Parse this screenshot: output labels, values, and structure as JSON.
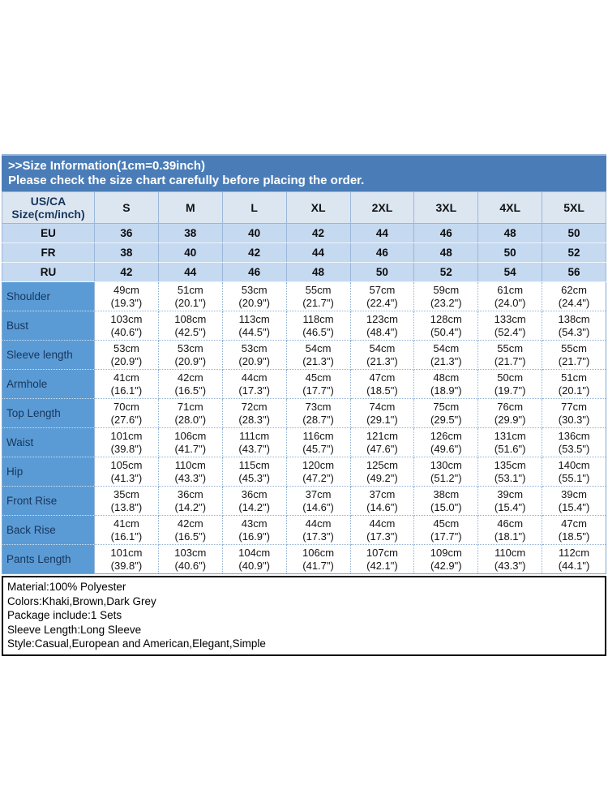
{
  "banner": {
    "title": ">>Size Information(1cm=0.39inch)",
    "subtitle": "Please check the size chart carefully before placing the order."
  },
  "table": {
    "corner": {
      "line1": "US/CA",
      "line2": "Size(cm/inch)"
    },
    "sizes": [
      "S",
      "M",
      "L",
      "XL",
      "2XL",
      "3XL",
      "4XL",
      "5XL"
    ],
    "region_rows": [
      {
        "label": "EU",
        "values": [
          "36",
          "38",
          "40",
          "42",
          "44",
          "46",
          "48",
          "50"
        ]
      },
      {
        "label": "FR",
        "values": [
          "38",
          "40",
          "42",
          "44",
          "46",
          "48",
          "50",
          "52"
        ]
      },
      {
        "label": "RU",
        "values": [
          "42",
          "44",
          "46",
          "48",
          "50",
          "52",
          "54",
          "56"
        ]
      }
    ],
    "measure_rows": [
      {
        "label": "Shoulder",
        "cm": [
          "49cm",
          "51cm",
          "53cm",
          "55cm",
          "57cm",
          "59cm",
          "61cm",
          "62cm"
        ],
        "inch": [
          "(19.3\")",
          "(20.1\")",
          "(20.9\")",
          "(21.7\")",
          "(22.4\")",
          "(23.2\")",
          "(24.0\")",
          "(24.4\")"
        ]
      },
      {
        "label": "Bust",
        "cm": [
          "103cm",
          "108cm",
          "113cm",
          "118cm",
          "123cm",
          "128cm",
          "133cm",
          "138cm"
        ],
        "inch": [
          "(40.6\")",
          "(42.5\")",
          "(44.5\")",
          "(46.5\")",
          "(48.4\")",
          "(50.4\")",
          "(52.4\")",
          "(54.3\")"
        ]
      },
      {
        "label": "Sleeve length",
        "cm": [
          "53cm",
          "53cm",
          "53cm",
          "54cm",
          "54cm",
          "54cm",
          "55cm",
          "55cm"
        ],
        "inch": [
          "(20.9\")",
          "(20.9\")",
          "(20.9\")",
          "(21.3\")",
          "(21.3\")",
          "(21.3\")",
          "(21.7\")",
          "(21.7\")"
        ]
      },
      {
        "label": "Armhole",
        "cm": [
          "41cm",
          "42cm",
          "44cm",
          "45cm",
          "47cm",
          "48cm",
          "50cm",
          "51cm"
        ],
        "inch": [
          "(16.1\")",
          "(16.5\")",
          "(17.3\")",
          "(17.7\")",
          "(18.5\")",
          "(18.9\")",
          "(19.7\")",
          "(20.1\")"
        ]
      },
      {
        "label": "Top Length",
        "cm": [
          "70cm",
          "71cm",
          "72cm",
          "73cm",
          "74cm",
          "75cm",
          "76cm",
          "77cm"
        ],
        "inch": [
          "(27.6\")",
          "(28.0\")",
          "(28.3\")",
          "(28.7\")",
          "(29.1\")",
          "(29.5\")",
          "(29.9\")",
          "(30.3\")"
        ]
      },
      {
        "label": "Waist",
        "cm": [
          "101cm",
          "106cm",
          "111cm",
          "116cm",
          "121cm",
          "126cm",
          "131cm",
          "136cm"
        ],
        "inch": [
          "(39.8\")",
          "(41.7\")",
          "(43.7\")",
          "(45.7\")",
          "(47.6\")",
          "(49.6\")",
          "(51.6\")",
          "(53.5\")"
        ]
      },
      {
        "label": "Hip",
        "cm": [
          "105cm",
          "110cm",
          "115cm",
          "120cm",
          "125cm",
          "130cm",
          "135cm",
          "140cm"
        ],
        "inch": [
          "(41.3\")",
          "(43.3\")",
          "(45.3\")",
          "(47.2\")",
          "(49.2\")",
          "(51.2\")",
          "(53.1\")",
          "(55.1\")"
        ]
      },
      {
        "label": "Front Rise",
        "cm": [
          "35cm",
          "36cm",
          "36cm",
          "37cm",
          "37cm",
          "38cm",
          "39cm",
          "39cm"
        ],
        "inch": [
          "(13.8\")",
          "(14.2\")",
          "(14.2\")",
          "(14.6\")",
          "(14.6\")",
          "(15.0\")",
          "(15.4\")",
          "(15.4\")"
        ]
      },
      {
        "label": "Back Rise",
        "cm": [
          "41cm",
          "42cm",
          "43cm",
          "44cm",
          "44cm",
          "45cm",
          "46cm",
          "47cm"
        ],
        "inch": [
          "(16.1\")",
          "(16.5\")",
          "(16.9\")",
          "(17.3\")",
          "(17.3\")",
          "(17.7\")",
          "(18.1\")",
          "(18.5\")"
        ]
      },
      {
        "label": "Pants Length",
        "cm": [
          "101cm",
          "103cm",
          "104cm",
          "106cm",
          "107cm",
          "109cm",
          "110cm",
          "112cm"
        ],
        "inch": [
          "(39.8\")",
          "(40.6\")",
          "(40.9\")",
          "(41.7\")",
          "(42.1\")",
          "(42.9\")",
          "(43.3\")",
          "(44.1\")"
        ]
      }
    ]
  },
  "details": {
    "lines": [
      "Material:100% Polyester",
      "Colors:Khaki,Brown,Dark Grey",
      "Package include:1 Sets",
      "Sleeve Length:Long Sleeve",
      "Style:Casual,European and American,Elegant,Simple"
    ]
  },
  "colors": {
    "banner_blue": "#4a7db8",
    "header_row_bg": "#dce6f1",
    "region_row_bg": "#c5d9f1",
    "label_col_bg": "#5b9bd5",
    "border_blue": "#9ab7da"
  }
}
